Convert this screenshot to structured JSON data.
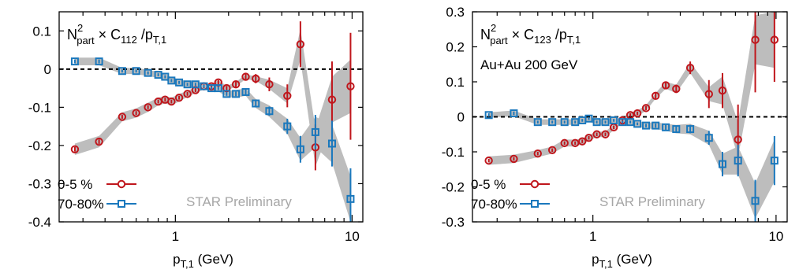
{
  "colors": {
    "central": "#c0161c",
    "peripheral": "#1a78bd",
    "band": "#bdbdbd",
    "axis": "#000000",
    "watermark": "#a6a6a6"
  },
  "chart_data": [
    {
      "type": "scatter",
      "title_main": "N",
      "title_sup": "2",
      "title_sub": "part",
      "title_mid": " × C",
      "title_sub2": "112",
      "title_end": " /p",
      "title_sub3": "T,1",
      "subtitle": "",
      "xlabel_main": "p",
      "xlabel_sub": "T,1",
      "xlabel_unit": " (GeV)",
      "ylabel": "",
      "xscale": "log",
      "xlim": [
        0.22,
        11.5
      ],
      "ylim": [
        -0.4,
        0.15
      ],
      "xticks": [
        {
          "value": 1,
          "label": "1"
        },
        {
          "value": 10,
          "label": "10"
        }
      ],
      "yticks": [
        {
          "value": 0.1,
          "label": "0.1"
        },
        {
          "value": 0,
          "label": "0"
        },
        {
          "value": -0.1,
          "label": "-0.1"
        },
        {
          "value": -0.2,
          "label": "-0.2"
        },
        {
          "value": -0.3,
          "label": "-0.3"
        },
        {
          "value": -0.4,
          "label": "-0.4"
        }
      ],
      "watermark": "STAR Preliminary",
      "legend": [
        {
          "label": "0-5 %",
          "marker": "circle",
          "series": "central"
        },
        {
          "label": "70-80%",
          "marker": "square",
          "series": "peripheral"
        }
      ],
      "legend_position": "bottom-left",
      "series": [
        {
          "name": "0-5 %",
          "key": "central",
          "marker": "circle",
          "x": [
            0.27,
            0.37,
            0.5,
            0.6,
            0.7,
            0.8,
            0.875,
            0.95,
            1.05,
            1.17,
            1.3,
            1.45,
            1.6,
            1.75,
            1.95,
            2.2,
            2.5,
            2.85,
            3.4,
            4.3,
            5.1,
            6.2,
            7.7,
            9.8
          ],
          "y": [
            -0.21,
            -0.19,
            -0.125,
            -0.115,
            -0.1,
            -0.085,
            -0.08,
            -0.085,
            -0.075,
            -0.065,
            -0.055,
            -0.045,
            -0.045,
            -0.035,
            -0.05,
            -0.04,
            -0.02,
            -0.025,
            -0.04,
            -0.07,
            0.065,
            -0.205,
            -0.08,
            -0.045
          ],
          "yerr": [
            0.006,
            0.006,
            0.005,
            0.005,
            0.005,
            0.005,
            0.005,
            0.005,
            0.005,
            0.005,
            0.005,
            0.005,
            0.005,
            0.006,
            0.006,
            0.008,
            0.01,
            0.012,
            0.018,
            0.03,
            0.06,
            0.06,
            0.1,
            0.14
          ],
          "band": [
            0.015,
            0.015,
            0.012,
            0.012,
            0.012,
            0.01,
            0.01,
            0.01,
            0.01,
            0.008,
            0.008,
            0.008,
            0.006,
            0.006,
            0.006,
            0.006,
            0.006,
            0.006,
            0.012,
            0.02,
            0.04,
            0.05,
            0.06,
            0.07
          ]
        },
        {
          "name": "70-80%",
          "key": "peripheral",
          "marker": "square",
          "x": [
            0.27,
            0.37,
            0.5,
            0.6,
            0.7,
            0.8,
            0.875,
            0.95,
            1.05,
            1.17,
            1.3,
            1.45,
            1.6,
            1.75,
            1.95,
            2.2,
            2.5,
            2.85,
            3.4,
            4.3,
            5.1,
            6.2,
            7.7,
            9.8
          ],
          "y": [
            0.02,
            0.02,
            -0.005,
            -0.005,
            -0.01,
            -0.015,
            -0.02,
            -0.03,
            -0.035,
            -0.04,
            -0.04,
            -0.045,
            -0.05,
            -0.05,
            -0.065,
            -0.065,
            -0.06,
            -0.09,
            -0.11,
            -0.15,
            -0.21,
            -0.165,
            -0.195,
            -0.34
          ],
          "yerr": [
            0.005,
            0.005,
            0.004,
            0.004,
            0.004,
            0.004,
            0.004,
            0.004,
            0.004,
            0.004,
            0.004,
            0.004,
            0.004,
            0.005,
            0.005,
            0.006,
            0.007,
            0.01,
            0.012,
            0.02,
            0.035,
            0.045,
            0.06,
            0.08
          ],
          "band": [
            0.01,
            0.01,
            0.008,
            0.008,
            0.008,
            0.008,
            0.008,
            0.008,
            0.008,
            0.008,
            0.008,
            0.008,
            0.008,
            0.008,
            0.008,
            0.01,
            0.01,
            0.012,
            0.015,
            0.02,
            0.03,
            0.04,
            0.05,
            0.06
          ]
        }
      ]
    },
    {
      "type": "scatter",
      "title_main": "N",
      "title_sup": "2",
      "title_sub": "part",
      "title_mid": " × C",
      "title_sub2": "123",
      "title_end": " /p",
      "title_sub3": "T,1",
      "subtitle": "Au+Au 200 GeV",
      "xlabel_main": "p",
      "xlabel_sub": "T,1",
      "xlabel_unit": " (GeV)",
      "ylabel": "",
      "xscale": "log",
      "xlim": [
        0.22,
        11.5
      ],
      "ylim": [
        -0.3,
        0.3
      ],
      "xticks": [
        {
          "value": 1,
          "label": "1"
        },
        {
          "value": 10,
          "label": "10"
        }
      ],
      "yticks": [
        {
          "value": 0.3,
          "label": "0.3"
        },
        {
          "value": 0.2,
          "label": "0.2"
        },
        {
          "value": 0.1,
          "label": "0.1"
        },
        {
          "value": 0,
          "label": "0"
        },
        {
          "value": -0.1,
          "label": "-0.1"
        },
        {
          "value": -0.2,
          "label": "-0.2"
        },
        {
          "value": -0.3,
          "label": "-0.3"
        }
      ],
      "watermark": "STAR Preliminary",
      "legend": [
        {
          "label": "0-5 %",
          "marker": "circle",
          "series": "central"
        },
        {
          "label": "70-80%",
          "marker": "square",
          "series": "peripheral"
        }
      ],
      "legend_position": "bottom-left",
      "series": [
        {
          "name": "0-5 %",
          "key": "central",
          "marker": "circle",
          "x": [
            0.27,
            0.37,
            0.5,
            0.6,
            0.7,
            0.8,
            0.875,
            0.95,
            1.05,
            1.17,
            1.3,
            1.45,
            1.6,
            1.75,
            1.95,
            2.2,
            2.5,
            2.85,
            3.4,
            4.3,
            5.1,
            6.2,
            7.7,
            9.8
          ],
          "y": [
            -0.125,
            -0.12,
            -0.105,
            -0.095,
            -0.075,
            -0.075,
            -0.07,
            -0.06,
            -0.05,
            -0.05,
            -0.03,
            -0.01,
            0.005,
            0.01,
            0.025,
            0.06,
            0.09,
            0.08,
            0.14,
            0.065,
            0.075,
            -0.065,
            0.22,
            0.22
          ],
          "yerr": [
            0.005,
            0.005,
            0.005,
            0.005,
            0.005,
            0.005,
            0.005,
            0.005,
            0.005,
            0.005,
            0.005,
            0.005,
            0.005,
            0.005,
            0.006,
            0.008,
            0.01,
            0.012,
            0.018,
            0.04,
            0.05,
            0.1,
            0.15,
            0.12
          ],
          "band": [
            0.012,
            0.012,
            0.01,
            0.01,
            0.01,
            0.01,
            0.008,
            0.008,
            0.008,
            0.008,
            0.008,
            0.008,
            0.008,
            0.008,
            0.008,
            0.008,
            0.01,
            0.012,
            0.015,
            0.02,
            0.04,
            0.05,
            0.07,
            0.08
          ]
        },
        {
          "name": "70-80%",
          "key": "peripheral",
          "marker": "square",
          "x": [
            0.27,
            0.37,
            0.5,
            0.6,
            0.7,
            0.8,
            0.875,
            0.95,
            1.05,
            1.17,
            1.3,
            1.45,
            1.6,
            1.75,
            1.95,
            2.2,
            2.5,
            2.85,
            3.4,
            4.3,
            5.1,
            6.2,
            7.7,
            9.8
          ],
          "y": [
            0.005,
            0.01,
            -0.015,
            -0.015,
            -0.015,
            -0.015,
            -0.01,
            -0.005,
            -0.015,
            -0.015,
            -0.01,
            -0.015,
            -0.015,
            -0.02,
            -0.025,
            -0.025,
            -0.03,
            -0.035,
            -0.035,
            -0.06,
            -0.135,
            -0.125,
            -0.24,
            -0.125
          ],
          "yerr": [
            0.005,
            0.005,
            0.004,
            0.004,
            0.004,
            0.004,
            0.004,
            0.004,
            0.004,
            0.004,
            0.004,
            0.004,
            0.004,
            0.004,
            0.005,
            0.006,
            0.007,
            0.01,
            0.012,
            0.02,
            0.035,
            0.045,
            0.06,
            0.07
          ],
          "band": [
            0.008,
            0.008,
            0.008,
            0.008,
            0.008,
            0.008,
            0.008,
            0.008,
            0.008,
            0.008,
            0.008,
            0.008,
            0.008,
            0.008,
            0.008,
            0.01,
            0.01,
            0.012,
            0.015,
            0.02,
            0.03,
            0.04,
            0.05,
            0.06
          ]
        }
      ]
    }
  ]
}
